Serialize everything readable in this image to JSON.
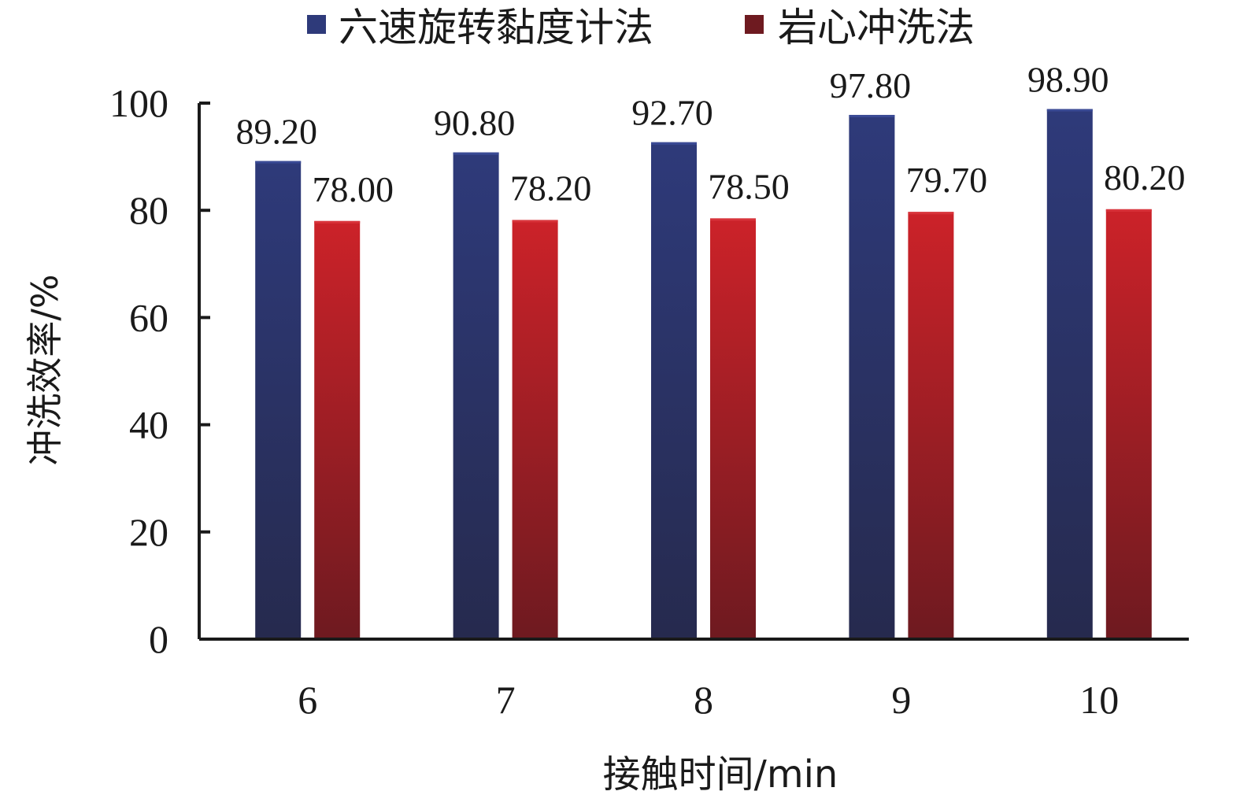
{
  "chart_data": {
    "type": "bar",
    "categories": [
      "6",
      "7",
      "8",
      "9",
      "10"
    ],
    "series": [
      {
        "name": "六速旋转黏度计法",
        "values": [
          89.2,
          90.8,
          92.7,
          97.8,
          98.9
        ],
        "labels": [
          "89.20",
          "90.80",
          "92.70",
          "97.80",
          "98.90"
        ],
        "color_top": "#2e3a7a",
        "color_bottom": "#262a4e"
      },
      {
        "name": "岩心冲洗法",
        "values": [
          78.0,
          78.2,
          78.5,
          79.7,
          80.2
        ],
        "labels": [
          "78.00",
          "78.20",
          "78.50",
          "79.70",
          "80.20"
        ],
        "color_top": "#cc2229",
        "color_bottom": "#6e1a20"
      }
    ],
    "xlabel": "接触时间/min",
    "ylabel": "冲洗效率/%",
    "ylim": [
      0,
      100
    ],
    "yticks": [
      "0",
      "20",
      "40",
      "60",
      "80",
      "100"
    ],
    "legend_position": "top-center",
    "grid": false
  }
}
